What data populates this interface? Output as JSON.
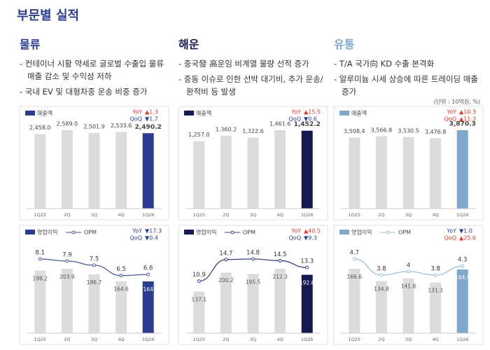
{
  "header": {
    "title": "부문별 실적"
  },
  "sections": [
    {
      "title": "물류",
      "color": "#2b3d8f",
      "bullets": [
        "- 컨테이너 시황 약세로 글로벌 수출입 물류 매출 감소 및 수익성 저하",
        "- 국내 EV 및 대형차종 운송 비중 증가"
      ]
    },
    {
      "title": "해운",
      "color": "#141a4f",
      "bullets": [
        "- 중국發 高운임 비계열 물량 선적 증가",
        "- 중동 이슈로 인한 선박 대기비, 추가 운송/환적비 등 발생"
      ]
    },
    {
      "title": "유통",
      "color": "#7fa9c8",
      "bullets": [
        "- T/A 국가向 KD 수출 본격화",
        "- 알루미늄 시세 상승에 따른 트레이딩 매출 증가"
      ]
    }
  ],
  "unit_note": "(단위 : 10억원, %)",
  "chart_data": [
    {
      "type": "bar",
      "categories": [
        "1Q25",
        "2Q",
        "3Q",
        "4Q",
        "1Q26"
      ],
      "series": [
        {
          "name": "매출액",
          "color": "#dcdcdc",
          "highlight_color": "#2b3d8f",
          "values": [
            2458.0,
            2589.0,
            2501.9,
            2533.6,
            2490.2
          ],
          "value_labels": [
            "2,458.0",
            "2,589.0",
            "2,501.9",
            "2,533.6",
            "2,490.2"
          ]
        }
      ],
      "annotations": [
        {
          "label": "YoY",
          "value": "▲1.3",
          "color": "#e8332a"
        },
        {
          "label": "QoQ",
          "value": "▼1.7",
          "color": "#2b3d8f"
        }
      ]
    },
    {
      "type": "bar",
      "categories": [
        "1Q25",
        "2Q",
        "3Q",
        "4Q",
        "1Q26"
      ],
      "series": [
        {
          "name": "매출액",
          "color": "#dcdcdc",
          "highlight_color": "#141a4f",
          "values": [
            1257.0,
            1360.2,
            1322.6,
            1461.6,
            1452.2
          ],
          "value_labels": [
            "1,257.0",
            "1,360.2",
            "1,322.6",
            "1,461.6",
            "1,452.2"
          ]
        }
      ],
      "annotations": [
        {
          "label": "YoY",
          "value": "▲15.5",
          "color": "#e8332a"
        },
        {
          "label": "QoQ",
          "value": "▼0.6",
          "color": "#2b3d8f"
        }
      ]
    },
    {
      "type": "bar",
      "categories": [
        "1Q25",
        "2Q",
        "3Q",
        "4Q",
        "1Q26"
      ],
      "series": [
        {
          "name": "매출액",
          "color": "#dcdcdc",
          "highlight_color": "#7fa9c8",
          "values": [
            3508.4,
            3566.8,
            3530.5,
            3476.8,
            3870.3
          ],
          "value_labels": [
            "3,508.4",
            "3,566.8",
            "3,530.5",
            "3,476.8",
            "3,870.3"
          ]
        }
      ],
      "annotations": [
        {
          "label": "YoY",
          "value": "▲10.3",
          "color": "#e8332a"
        },
        {
          "label": "QoQ",
          "value": "▲11.3",
          "color": "#e8332a"
        }
      ]
    },
    {
      "type": "bar_line",
      "categories": [
        "1Q25",
        "2Q",
        "3Q",
        "4Q",
        "1Q26"
      ],
      "series": [
        {
          "name": "영업이익",
          "color": "#dcdcdc",
          "highlight_color": "#2b3d8f",
          "values": [
            198.2,
            203.9,
            186.7,
            164.6,
            164.0
          ]
        },
        {
          "name": "OPM",
          "type": "line",
          "color": "#4a5a9a",
          "values": [
            8.1,
            7.9,
            7.5,
            6.5,
            6.6
          ]
        }
      ],
      "annotations": [
        {
          "label": "YoY",
          "value": "▼17.3",
          "color": "#2b3d8f"
        },
        {
          "label": "QoQ",
          "value": "▼0.4",
          "color": "#2b3d8f"
        }
      ]
    },
    {
      "type": "bar_line",
      "categories": [
        "1Q25",
        "2Q",
        "3Q",
        "4Q",
        "1Q26"
      ],
      "series": [
        {
          "name": "영업이익",
          "color": "#dcdcdc",
          "highlight_color": "#141a4f",
          "values": [
            137.1,
            200.2,
            195.5,
            212.3,
            192.6
          ]
        },
        {
          "name": "OPM",
          "type": "line",
          "color": "#3a3f8a",
          "values": [
            10.9,
            14.7,
            14.8,
            14.5,
            13.3
          ]
        }
      ],
      "annotations": [
        {
          "label": "YoY",
          "value": "▲40.5",
          "color": "#e8332a"
        },
        {
          "label": "QoQ",
          "value": "▼9.3",
          "color": "#2b3d8f"
        }
      ]
    },
    {
      "type": "bar_line",
      "categories": [
        "1Q25",
        "2Q",
        "3Q",
        "4Q",
        "1Q26"
      ],
      "series": [
        {
          "name": "영업이익",
          "color": "#dcdcdc",
          "highlight_color": "#7fa9c8",
          "values": [
            166.6,
            134.8,
            141.8,
            131.3,
            164.9
          ]
        },
        {
          "name": "OPM",
          "type": "line",
          "color": "#9ec0d8",
          "values": [
            4.7,
            3.8,
            4.0,
            3.8,
            4.3
          ]
        }
      ],
      "annotations": [
        {
          "label": "YoY",
          "value": "▼1.0",
          "color": "#2b3d8f"
        },
        {
          "label": "QoQ",
          "value": "▲25.6",
          "color": "#e8332a"
        }
      ]
    }
  ]
}
